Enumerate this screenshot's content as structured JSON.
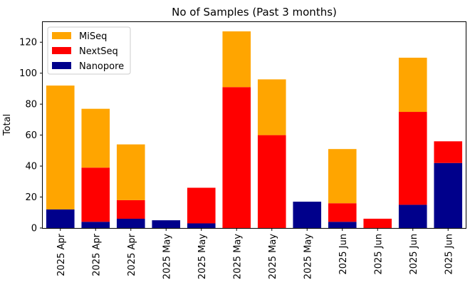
{
  "chart_data": {
    "type": "bar",
    "stacked": true,
    "title": "No of Samples (Past 3 months)",
    "xlabel": "",
    "ylabel": "Total",
    "ylim": [
      0,
      133
    ],
    "yticks": [
      0,
      20,
      40,
      60,
      80,
      100,
      120
    ],
    "grid": false,
    "legend_position": "top-left",
    "categories": [
      "2025 Apr",
      "2025 Apr",
      "2025 Apr",
      "2025 May",
      "2025 May",
      "2025 May",
      "2025 May",
      "2025 May",
      "2025 Jun",
      "2025 Jun",
      "2025 Jun",
      "2025 Jun"
    ],
    "series": [
      {
        "name": "Nanopore",
        "color": "#00008b",
        "values": [
          12,
          4,
          6,
          5,
          3,
          0,
          0,
          17,
          4,
          0,
          15,
          42
        ]
      },
      {
        "name": "NextSeq",
        "color": "#ff0000",
        "values": [
          0,
          35,
          12,
          0,
          23,
          91,
          60,
          0,
          12,
          6,
          60,
          14
        ]
      },
      {
        "name": "MiSeq",
        "color": "#ffa500",
        "values": [
          80,
          38,
          36,
          0,
          0,
          36,
          36,
          0,
          35,
          0,
          35,
          0
        ]
      }
    ],
    "legend_order": [
      "MiSeq",
      "NextSeq",
      "Nanopore"
    ]
  }
}
